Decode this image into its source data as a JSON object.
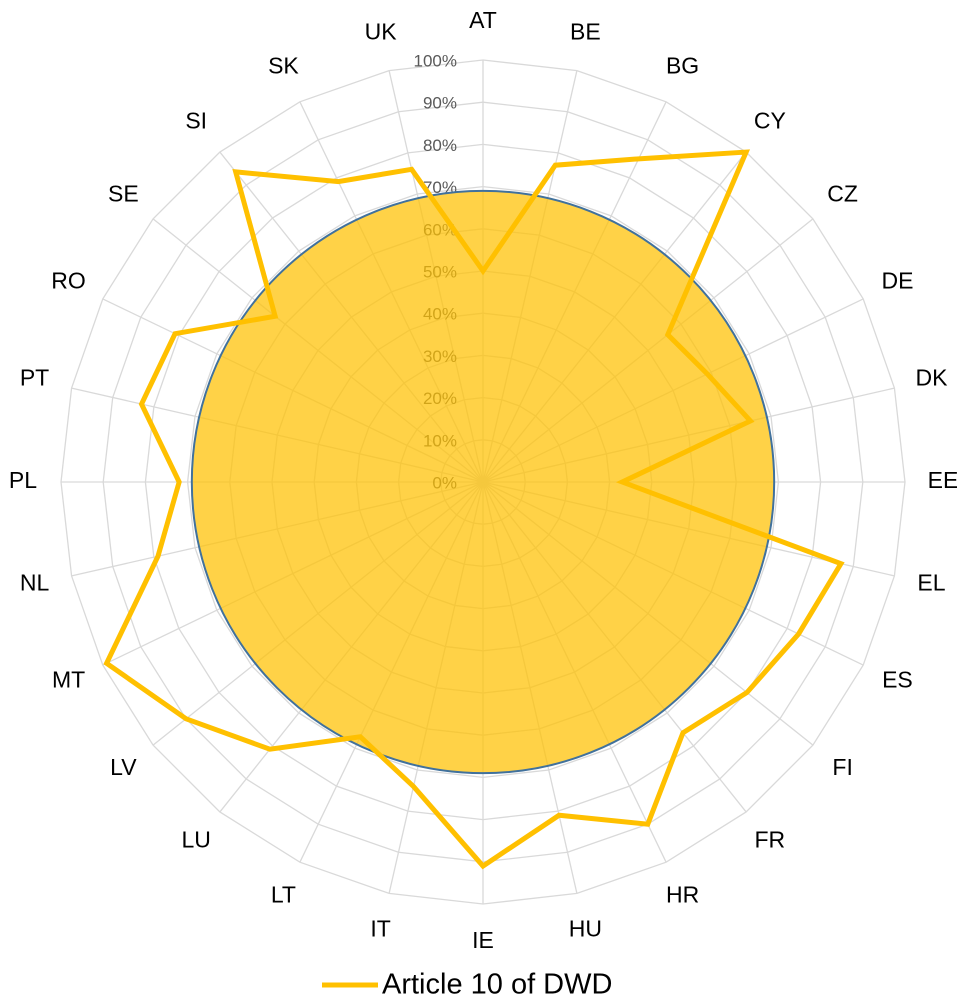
{
  "chart_data": {
    "type": "radar",
    "categories": [
      "AT",
      "BE",
      "BG",
      "CY",
      "CZ",
      "DE",
      "DK",
      "EE",
      "EL",
      "ES",
      "FI",
      "FR",
      "HR",
      "HU",
      "IE",
      "IT",
      "LT",
      "LU",
      "LV",
      "MT",
      "NL",
      "PL",
      "PT",
      "RO",
      "SE",
      "SI",
      "SK",
      "UK"
    ],
    "series": [
      {
        "name": "Article 10 of DWD",
        "color": "#ffc000",
        "values": [
          50,
          77,
          85,
          100,
          56,
          59,
          65,
          33,
          87,
          83,
          80,
          76,
          90,
          81,
          91,
          74,
          67,
          81,
          90,
          99,
          79,
          72,
          83,
          81,
          63,
          94,
          79,
          76
        ]
      }
    ],
    "area_value": 69,
    "area_color": "#ffc000",
    "area_edge_color": "#41719c",
    "ylim": [
      0,
      100
    ],
    "yticks": [
      {
        "value": 0,
        "label": "0%"
      },
      {
        "value": 10,
        "label": "10%"
      },
      {
        "value": 20,
        "label": "20%"
      },
      {
        "value": 30,
        "label": "30%"
      },
      {
        "value": 40,
        "label": "40%"
      },
      {
        "value": 50,
        "label": "50%"
      },
      {
        "value": 60,
        "label": "60%"
      },
      {
        "value": 70,
        "label": "70%"
      },
      {
        "value": 80,
        "label": "80%"
      },
      {
        "value": 90,
        "label": "90%"
      },
      {
        "value": 100,
        "label": "100%"
      }
    ],
    "grid": true,
    "legend": "bottom"
  }
}
